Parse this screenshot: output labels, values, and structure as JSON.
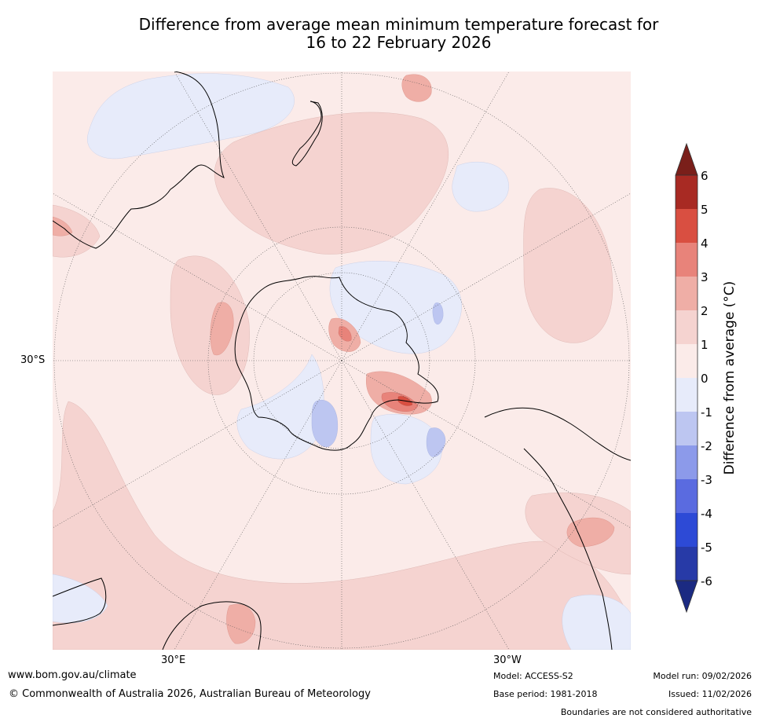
{
  "title": {
    "line1": "Difference from average mean minimum temperature forecast for",
    "line2": "16 to 22 February 2026"
  },
  "map": {
    "lat_label": "30°S",
    "lon_labels": [
      "30°E",
      "30°W"
    ],
    "projection": "south-polar stereographic"
  },
  "colorbar": {
    "label": "Difference from average (°C)",
    "ticks": [
      "6",
      "5",
      "4",
      "3",
      "2",
      "1",
      "0",
      "-1",
      "-2",
      "-3",
      "-4",
      "-5",
      "-6"
    ],
    "colors": {
      "gt6": "#7a1f1a",
      "c5_6": "#a82a23",
      "c4_5": "#d94f41",
      "c3_4": "#e8837a",
      "c2_3": "#efaea6",
      "c1_2": "#f5d3d0",
      "c0_1": "#fbebe9",
      "cm1_0": "#e7ebfa",
      "cm2_m1": "#bdc6f1",
      "cm3_m2": "#8c9aea",
      "cm4_m3": "#5a6be0",
      "cm5_m4": "#2d4ad6",
      "cm6_m5": "#273aa7",
      "lt_m6": "#1b2a82"
    }
  },
  "footer": {
    "website": "www.bom.gov.au/climate",
    "copyright": "© Commonwealth of Australia 2026, Australian Bureau of Meteorology",
    "model": "Model: ACCESS-S2",
    "base_period": "Base period: 1981-2018",
    "model_run": "Model run: 09/02/2026",
    "issued": "Issued: 11/02/2026",
    "boundaries": "Boundaries are not considered authoritative"
  }
}
